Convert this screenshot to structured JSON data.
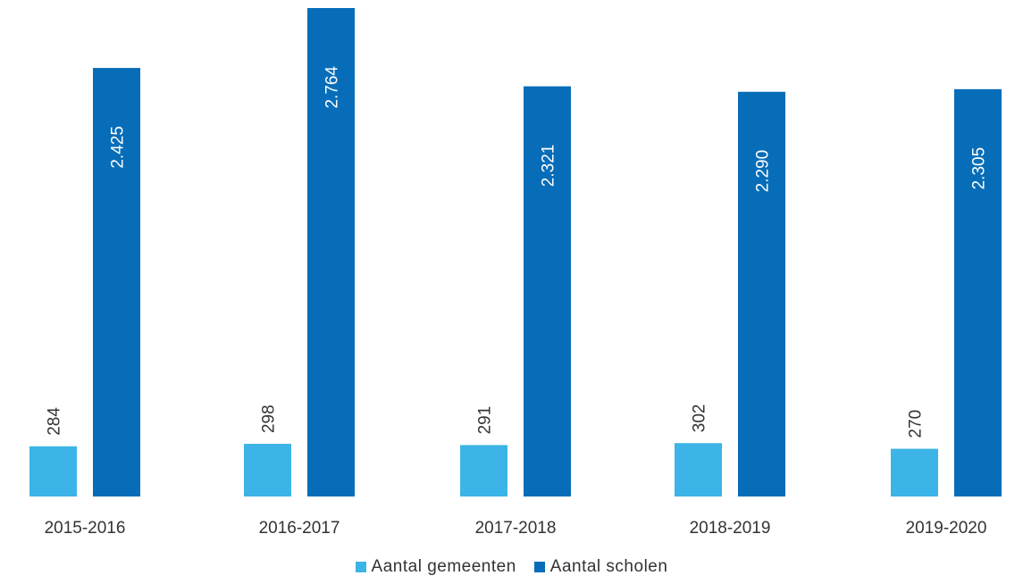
{
  "chart_data": {
    "type": "bar",
    "categories": [
      "2015-2016",
      "2016-2017",
      "2017-2018",
      "2018-2019",
      "2019-2020"
    ],
    "series": [
      {
        "name": "Aantal gemeenten",
        "color": "#3cb4e7",
        "values": [
          284,
          298,
          291,
          302,
          270
        ],
        "labels": [
          "284",
          "298",
          "291",
          "302",
          "270"
        ]
      },
      {
        "name": "Aantal scholen",
        "color": "#076db8",
        "values": [
          2425,
          2764,
          2321,
          2290,
          2305
        ],
        "labels": [
          "2.425",
          "2.764",
          "2.321",
          "2.290",
          "2.305"
        ]
      }
    ],
    "ylim": [
      0,
      2800
    ],
    "grid": false,
    "legend_position": "bottom-center"
  }
}
